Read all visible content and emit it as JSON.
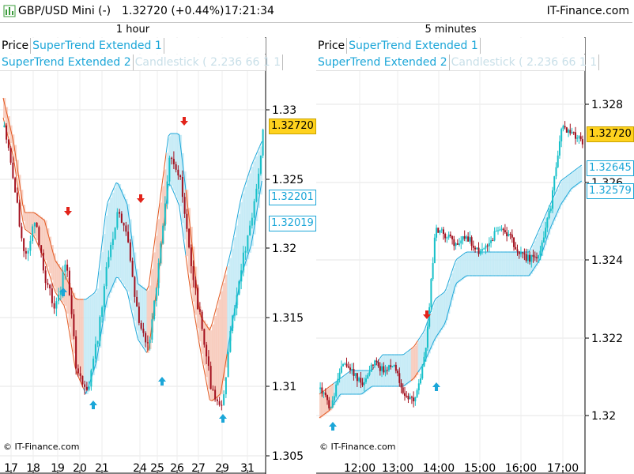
{
  "titlebar": {
    "symbol": "GBP/USD Mini (-)",
    "price": "1.32720 (+0.44%)",
    "time": "17:21:34",
    "brand": "IT-Finance.com"
  },
  "legend": {
    "price": "Price",
    "st1": "SuperTrend Extended 1",
    "st2": "SuperTrend Extended 2",
    "candlestick": "Candlestick ( 2.236 66 1 1"
  },
  "left": {
    "title": "1 hour",
    "y_ticks": [
      "1.33",
      "1.325",
      "1.32",
      "1.315",
      "1.31",
      "1.305"
    ],
    "x_ticks": [
      "17",
      "18",
      "19",
      "20",
      "21",
      "24",
      "25",
      "26",
      "27",
      "29",
      "31"
    ],
    "tags": {
      "last": "1.32720",
      "st_a": "1.32201",
      "st_b": "1.32019"
    },
    "copyright": "© IT-Finance.com"
  },
  "right": {
    "title": "5 minutes",
    "y_ticks": [
      "1.328",
      "1.326",
      "1.324",
      "1.322",
      "1.32"
    ],
    "x_ticks": [
      "12:00",
      "13:00",
      "14:00",
      "15:00",
      "16:00",
      "17:00"
    ],
    "tags": {
      "last": "1.32720",
      "st_a": "1.32645",
      "st_b": "1.32579"
    },
    "copyright": "© IT-Finance.com"
  },
  "colors": {
    "bull": "#17c0c9",
    "bear": "#a3101e",
    "st_up": "#1ba6d8",
    "st_down": "#e2571e",
    "fill_up": "#bfe9f5",
    "fill_down": "#f6c6b5",
    "last_tag": "#ffd21e",
    "up_arrow": "#1ba6d8",
    "down_arrow": "#e2231a"
  }
}
